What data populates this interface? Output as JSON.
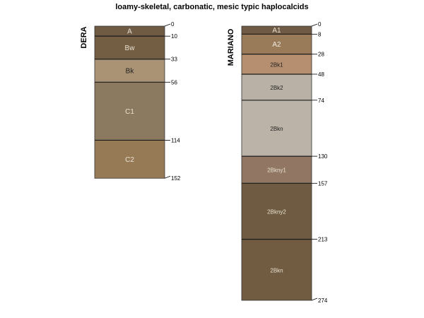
{
  "title": "loamy-skeletal, carbonatic, mesic typic haplocalcids",
  "profiles": [
    {
      "name": "DERA",
      "horizons": [
        {
          "name": "A",
          "top": 0,
          "bottom": 10,
          "color": "#6f5b44",
          "text_color": "#e8e0d0"
        },
        {
          "name": "Bw",
          "top": 10,
          "bottom": 33,
          "color": "#735d43",
          "text_color": "#e8e0d0"
        },
        {
          "name": "Bk",
          "top": 33,
          "bottom": 56,
          "color": "#a99374",
          "text_color": "#222222"
        },
        {
          "name": "C1",
          "top": 56,
          "bottom": 114,
          "color": "#8c7a60",
          "text_color": "#e8e0d0"
        },
        {
          "name": "C2",
          "top": 114,
          "bottom": 152,
          "color": "#967a55",
          "text_color": "#e8e0d0"
        }
      ]
    },
    {
      "name": "MARIANO",
      "horizons": [
        {
          "name": "A1",
          "top": 0,
          "bottom": 8,
          "color": "#6f5b45",
          "text_color": "#e8e0d0"
        },
        {
          "name": "A2",
          "top": 8,
          "bottom": 28,
          "color": "#9a7b59",
          "text_color": "#f0e8dc"
        },
        {
          "name": "2Bk1",
          "top": 28,
          "bottom": 48,
          "color": "#b58f6f",
          "text_color": "#222222"
        },
        {
          "name": "2Bk2",
          "top": 48,
          "bottom": 74,
          "color": "#b9b1a6",
          "text_color": "#222222"
        },
        {
          "name": "2Bkn",
          "top": 74,
          "bottom": 130,
          "color": "#bcb3a8",
          "text_color": "#222222"
        },
        {
          "name": "2Bkny1",
          "top": 130,
          "bottom": 157,
          "color": "#917763",
          "text_color": "#e8e0d0"
        },
        {
          "name": "2Bkny2",
          "top": 157,
          "bottom": 213,
          "color": "#6f5b41",
          "text_color": "#e8e0d0"
        },
        {
          "name": "2Bkn",
          "top": 213,
          "bottom": 274,
          "color": "#715c42",
          "text_color": "#e8e0d0"
        }
      ]
    }
  ]
}
